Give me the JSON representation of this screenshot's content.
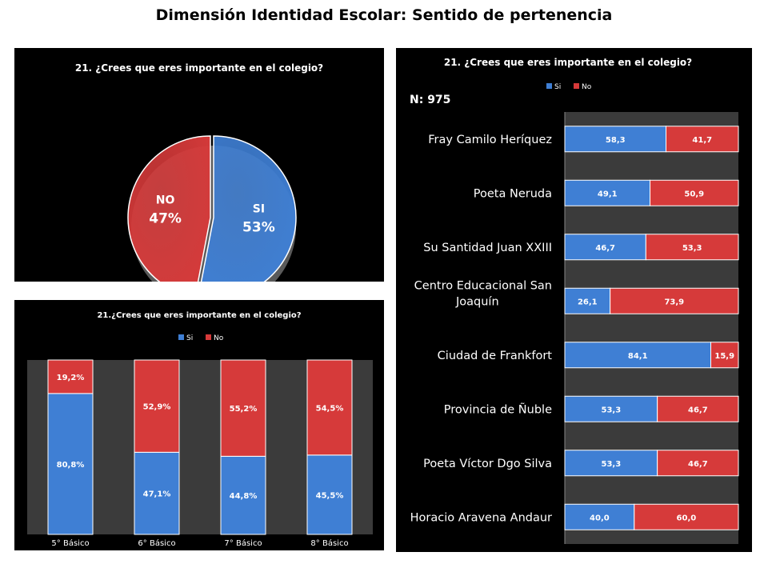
{
  "page": {
    "title": "Dimensión Identidad Escolar: Sentido de pertenencia"
  },
  "colors": {
    "si": "#3f7fd4",
    "no": "#d63a3a",
    "panel_bg": "#000000",
    "plot_bg": "#3b3b3b"
  },
  "chart_data": [
    {
      "type": "pie",
      "title": "21. ¿Crees que eres importante en el colegio?",
      "slices": [
        {
          "label": "Si",
          "value": 53,
          "value_label": "53%"
        },
        {
          "label": "No",
          "value": 47,
          "value_label": "47%"
        }
      ]
    },
    {
      "type": "bar",
      "stacked": true,
      "title": "21.¿Crees que eres importante en el colegio?",
      "legend": [
        "Si",
        "No"
      ],
      "legend_position": "top",
      "categories": [
        "5° Básico",
        "6° Básico",
        "7° Básico",
        "8° Básico"
      ],
      "series": [
        {
          "name": "Si",
          "values": [
            80.8,
            47.1,
            44.8,
            45.5
          ],
          "labels": [
            "80,8%",
            "47,1%",
            "44,8%",
            "45,5%"
          ]
        },
        {
          "name": "No",
          "values": [
            19.2,
            52.9,
            55.2,
            54.5
          ],
          "labels": [
            "19,2%",
            "52,9%",
            "55,2%",
            "54,5%"
          ]
        }
      ],
      "ylim": [
        0,
        100
      ]
    },
    {
      "type": "bar",
      "orientation": "horizontal",
      "stacked": true,
      "title": "21. ¿Crees que eres importante en el colegio?",
      "annotation": "N: 975",
      "legend": [
        "Si",
        "No"
      ],
      "legend_position": "top",
      "categories": [
        "Fray Camilo Heríquez",
        "Poeta Neruda",
        "Su Santidad Juan XXIII",
        "Centro Educacional San Joaquín",
        "Ciudad de Frankfort",
        "Provincia de Ñuble",
        "Poeta Víctor Dgo Silva",
        "Horacio Aravena Andaur"
      ],
      "category_lines": [
        [
          "Fray Camilo Heríquez"
        ],
        [
          "Poeta Neruda"
        ],
        [
          "Su Santidad Juan XXIII"
        ],
        [
          "Centro Educacional San",
          "Joaquín"
        ],
        [
          "Ciudad de Frankfort"
        ],
        [
          "Provincia de Ñuble"
        ],
        [
          "Poeta Víctor Dgo Silva"
        ],
        [
          "Horacio Aravena Andaur"
        ]
      ],
      "series": [
        {
          "name": "Si",
          "values": [
            58.3,
            49.1,
            46.7,
            26.1,
            84.1,
            53.3,
            53.3,
            40.0
          ],
          "labels": [
            "58,3",
            "49,1",
            "46,7",
            "26,1",
            "84,1",
            "53,3",
            "53,3",
            "40,0"
          ]
        },
        {
          "name": "No",
          "values": [
            41.7,
            50.9,
            53.3,
            73.9,
            15.9,
            46.7,
            46.7,
            60.0
          ],
          "labels": [
            "41,7",
            "50,9",
            "53,3",
            "73,9",
            "15,9",
            "46,7",
            "46,7",
            "60,0"
          ]
        }
      ],
      "xlim": [
        0,
        100
      ]
    }
  ]
}
